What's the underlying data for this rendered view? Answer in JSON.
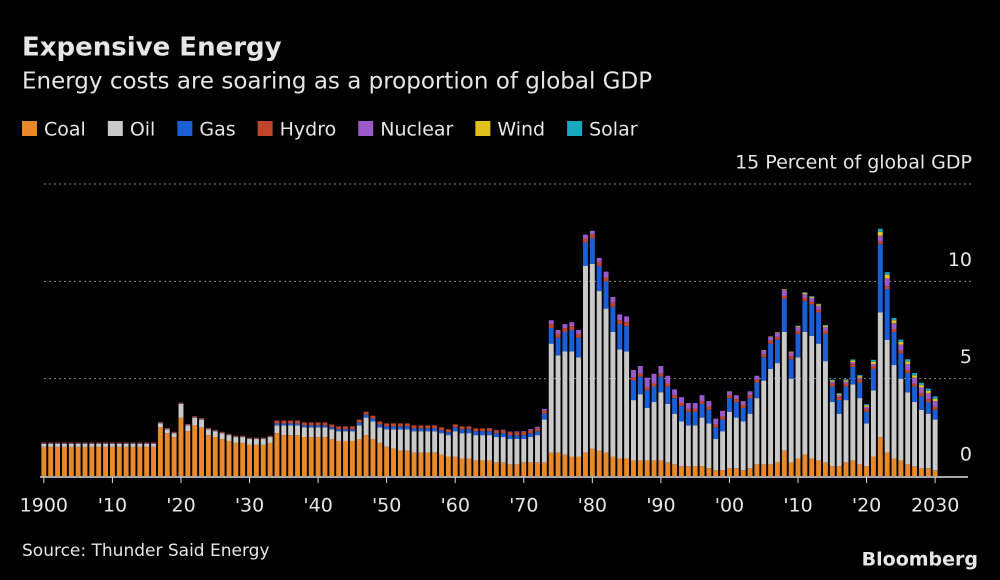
{
  "chart_data": {
    "type": "bar",
    "stacked": true,
    "title": "Expensive Energy",
    "subtitle": "Energy costs are soaring as a proportion of global GDP",
    "source": "Source: Thunder Said Energy",
    "logo": "Bloomberg",
    "xlim": [
      1899,
      2031
    ],
    "ylim": [
      0,
      15
    ],
    "yticks": [
      0,
      5,
      10,
      {
        "value": 15,
        "label": "15 Percent of global GDP"
      }
    ],
    "xticks": [
      1900,
      {
        "value": 1910,
        "label": "'10"
      },
      {
        "value": 1920,
        "label": "'20"
      },
      {
        "value": 1930,
        "label": "'30"
      },
      {
        "value": 1940,
        "label": "'40"
      },
      {
        "value": 1950,
        "label": "'50"
      },
      {
        "value": 1960,
        "label": "'60"
      },
      {
        "value": 1970,
        "label": "'70"
      },
      {
        "value": 1980,
        "label": "'80"
      },
      {
        "value": 1990,
        "label": "'90"
      },
      {
        "value": 2000,
        "label": "'00"
      },
      {
        "value": 2010,
        "label": "'10"
      },
      {
        "value": 2020,
        "label": "'20"
      },
      2030
    ],
    "grid": true,
    "legend": "top-left",
    "x": [
      1900,
      1901,
      1902,
      1903,
      1904,
      1905,
      1906,
      1907,
      1908,
      1909,
      1910,
      1911,
      1912,
      1913,
      1914,
      1915,
      1916,
      1917,
      1918,
      1919,
      1920,
      1921,
      1922,
      1923,
      1924,
      1925,
      1926,
      1927,
      1928,
      1929,
      1930,
      1931,
      1932,
      1933,
      1934,
      1935,
      1936,
      1937,
      1938,
      1939,
      1940,
      1941,
      1942,
      1943,
      1944,
      1945,
      1946,
      1947,
      1948,
      1949,
      1950,
      1951,
      1952,
      1953,
      1954,
      1955,
      1956,
      1957,
      1958,
      1959,
      1960,
      1961,
      1962,
      1963,
      1964,
      1965,
      1966,
      1967,
      1968,
      1969,
      1970,
      1971,
      1972,
      1973,
      1974,
      1975,
      1976,
      1977,
      1978,
      1979,
      1980,
      1981,
      1982,
      1983,
      1984,
      1985,
      1986,
      1987,
      1988,
      1989,
      1990,
      1991,
      1992,
      1993,
      1994,
      1995,
      1996,
      1997,
      1998,
      1999,
      2000,
      2001,
      2002,
      2003,
      2004,
      2005,
      2006,
      2007,
      2008,
      2009,
      2010,
      2011,
      2012,
      2013,
      2014,
      2015,
      2016,
      2017,
      2018,
      2019,
      2020,
      2021,
      2022,
      2023,
      2024,
      2025,
      2026,
      2027,
      2028,
      2029,
      2030
    ],
    "series": [
      {
        "name": "Coal",
        "color": "#e8892b",
        "values": [
          1.5,
          1.5,
          1.5,
          1.5,
          1.5,
          1.5,
          1.5,
          1.5,
          1.5,
          1.5,
          1.5,
          1.5,
          1.5,
          1.5,
          1.5,
          1.5,
          1.5,
          2.5,
          2.2,
          2.0,
          3.0,
          2.3,
          2.6,
          2.5,
          2.1,
          2.0,
          1.9,
          1.8,
          1.7,
          1.7,
          1.6,
          1.6,
          1.6,
          1.7,
          2.2,
          2.1,
          2.1,
          2.1,
          2.0,
          2.0,
          2.0,
          2.0,
          1.9,
          1.8,
          1.8,
          1.8,
          1.9,
          2.1,
          1.9,
          1.7,
          1.5,
          1.4,
          1.3,
          1.3,
          1.2,
          1.2,
          1.2,
          1.2,
          1.1,
          1.0,
          1.0,
          0.9,
          0.9,
          0.8,
          0.8,
          0.8,
          0.7,
          0.7,
          0.6,
          0.6,
          0.7,
          0.7,
          0.7,
          0.7,
          1.2,
          1.2,
          1.1,
          1.0,
          1.0,
          1.2,
          1.4,
          1.3,
          1.2,
          1.0,
          0.9,
          0.9,
          0.8,
          0.8,
          0.8,
          0.8,
          0.8,
          0.7,
          0.6,
          0.5,
          0.5,
          0.5,
          0.5,
          0.4,
          0.3,
          0.3,
          0.4,
          0.4,
          0.3,
          0.4,
          0.6,
          0.6,
          0.6,
          0.7,
          1.3,
          0.7,
          0.9,
          1.1,
          0.9,
          0.8,
          0.7,
          0.5,
          0.5,
          0.7,
          0.8,
          0.6,
          0.5,
          1.0,
          2.0,
          1.2,
          0.9,
          0.8,
          0.6,
          0.5,
          0.4,
          0.4,
          0.3
        ]
      },
      {
        "name": "Oil",
        "color": "#c9c9c9",
        "values": [
          0.15,
          0.15,
          0.15,
          0.15,
          0.15,
          0.15,
          0.15,
          0.15,
          0.15,
          0.15,
          0.15,
          0.15,
          0.15,
          0.15,
          0.15,
          0.15,
          0.15,
          0.2,
          0.2,
          0.2,
          0.7,
          0.3,
          0.4,
          0.4,
          0.3,
          0.3,
          0.3,
          0.3,
          0.3,
          0.3,
          0.3,
          0.3,
          0.3,
          0.3,
          0.4,
          0.5,
          0.5,
          0.5,
          0.5,
          0.5,
          0.5,
          0.5,
          0.5,
          0.5,
          0.5,
          0.5,
          0.7,
          0.9,
          0.9,
          0.8,
          0.9,
          1.0,
          1.1,
          1.1,
          1.1,
          1.1,
          1.1,
          1.1,
          1.1,
          1.1,
          1.3,
          1.3,
          1.3,
          1.3,
          1.3,
          1.3,
          1.3,
          1.3,
          1.3,
          1.3,
          1.2,
          1.3,
          1.4,
          2.2,
          5.6,
          5.0,
          5.3,
          5.4,
          5.1,
          9.6,
          9.5,
          8.2,
          7.4,
          6.4,
          5.6,
          5.5,
          3.1,
          3.4,
          2.7,
          3.0,
          3.5,
          3.0,
          2.6,
          2.3,
          2.1,
          2.1,
          2.5,
          2.3,
          1.6,
          2.0,
          2.9,
          2.6,
          2.5,
          2.8,
          3.4,
          4.3,
          4.9,
          5.1,
          6.1,
          4.3,
          5.2,
          6.3,
          6.3,
          6.0,
          5.2,
          3.3,
          2.7,
          3.2,
          3.9,
          3.4,
          2.2,
          3.4,
          6.4,
          5.8,
          4.8,
          4.2,
          3.7,
          3.3,
          3.0,
          2.8,
          2.6
        ]
      },
      {
        "name": "Gas",
        "color": "#1a5fd6",
        "values": [
          0.02,
          0.02,
          0.02,
          0.02,
          0.02,
          0.02,
          0.02,
          0.02,
          0.02,
          0.02,
          0.02,
          0.02,
          0.02,
          0.02,
          0.02,
          0.02,
          0.02,
          0.02,
          0.02,
          0.02,
          0.02,
          0.02,
          0.02,
          0.02,
          0.02,
          0.02,
          0.02,
          0.02,
          0.02,
          0.02,
          0.02,
          0.02,
          0.02,
          0.02,
          0.1,
          0.1,
          0.1,
          0.1,
          0.1,
          0.1,
          0.1,
          0.1,
          0.1,
          0.1,
          0.1,
          0.1,
          0.15,
          0.15,
          0.15,
          0.15,
          0.15,
          0.15,
          0.15,
          0.15,
          0.15,
          0.15,
          0.15,
          0.15,
          0.15,
          0.15,
          0.2,
          0.2,
          0.2,
          0.2,
          0.2,
          0.2,
          0.2,
          0.2,
          0.2,
          0.2,
          0.2,
          0.2,
          0.2,
          0.3,
          0.8,
          0.9,
          1.0,
          1.1,
          1.0,
          1.2,
          1.3,
          1.3,
          1.4,
          1.3,
          1.3,
          1.3,
          1.0,
          0.9,
          0.9,
          0.8,
          0.8,
          0.9,
          0.8,
          0.8,
          0.7,
          0.7,
          0.7,
          0.7,
          0.6,
          0.6,
          0.7,
          0.8,
          0.7,
          0.8,
          0.8,
          1.2,
          1.3,
          1.2,
          1.7,
          1.0,
          1.2,
          1.6,
          1.6,
          1.6,
          1.4,
          0.8,
          0.7,
          0.7,
          0.9,
          0.8,
          0.6,
          1.1,
          3.5,
          2.6,
          1.7,
          1.3,
          1.0,
          0.8,
          0.7,
          0.6,
          0.5
        ]
      },
      {
        "name": "Hydro",
        "color": "#c0442a",
        "values": [
          0.05,
          0.05,
          0.05,
          0.05,
          0.05,
          0.05,
          0.05,
          0.05,
          0.05,
          0.05,
          0.05,
          0.05,
          0.05,
          0.05,
          0.05,
          0.05,
          0.05,
          0.05,
          0.05,
          0.05,
          0.05,
          0.05,
          0.05,
          0.05,
          0.05,
          0.05,
          0.05,
          0.05,
          0.05,
          0.05,
          0.05,
          0.05,
          0.05,
          0.05,
          0.15,
          0.15,
          0.15,
          0.15,
          0.15,
          0.15,
          0.15,
          0.15,
          0.15,
          0.15,
          0.15,
          0.15,
          0.15,
          0.15,
          0.15,
          0.15,
          0.15,
          0.15,
          0.15,
          0.15,
          0.15,
          0.15,
          0.15,
          0.15,
          0.15,
          0.15,
          0.15,
          0.15,
          0.15,
          0.15,
          0.15,
          0.15,
          0.15,
          0.15,
          0.15,
          0.15,
          0.15,
          0.15,
          0.15,
          0.15,
          0.2,
          0.2,
          0.2,
          0.2,
          0.2,
          0.2,
          0.2,
          0.2,
          0.2,
          0.2,
          0.2,
          0.2,
          0.15,
          0.15,
          0.15,
          0.15,
          0.15,
          0.15,
          0.15,
          0.15,
          0.15,
          0.15,
          0.15,
          0.15,
          0.15,
          0.15,
          0.15,
          0.15,
          0.15,
          0.15,
          0.15,
          0.15,
          0.15,
          0.15,
          0.15,
          0.15,
          0.15,
          0.15,
          0.15,
          0.15,
          0.15,
          0.15,
          0.15,
          0.15,
          0.15,
          0.15,
          0.15,
          0.15,
          0.15,
          0.15,
          0.15,
          0.15,
          0.15,
          0.15,
          0.15,
          0.15,
          0.15
        ]
      },
      {
        "name": "Nuclear",
        "color": "#9b59c9",
        "values": [
          0,
          0,
          0,
          0,
          0,
          0,
          0,
          0,
          0,
          0,
          0,
          0,
          0,
          0,
          0,
          0,
          0,
          0,
          0,
          0,
          0,
          0,
          0,
          0,
          0,
          0,
          0,
          0,
          0,
          0,
          0,
          0,
          0,
          0,
          0,
          0,
          0,
          0,
          0,
          0,
          0,
          0,
          0,
          0,
          0,
          0,
          0,
          0,
          0,
          0,
          0,
          0,
          0,
          0,
          0,
          0,
          0,
          0,
          0,
          0,
          0,
          0,
          0,
          0,
          0,
          0.02,
          0.02,
          0.03,
          0.03,
          0.04,
          0.05,
          0.06,
          0.08,
          0.1,
          0.2,
          0.2,
          0.2,
          0.2,
          0.2,
          0.2,
          0.2,
          0.2,
          0.3,
          0.3,
          0.3,
          0.3,
          0.4,
          0.4,
          0.5,
          0.5,
          0.4,
          0.4,
          0.3,
          0.3,
          0.3,
          0.3,
          0.3,
          0.3,
          0.3,
          0.3,
          0.2,
          0.2,
          0.2,
          0.2,
          0.2,
          0.2,
          0.2,
          0.2,
          0.3,
          0.2,
          0.2,
          0.2,
          0.2,
          0.2,
          0.2,
          0.1,
          0.1,
          0.1,
          0.1,
          0.1,
          0.1,
          0.1,
          0.3,
          0.4,
          0.3,
          0.3,
          0.3,
          0.3,
          0.3,
          0.3,
          0.3
        ]
      },
      {
        "name": "Wind",
        "color": "#e0c21a",
        "values": [
          0,
          0,
          0,
          0,
          0,
          0,
          0,
          0,
          0,
          0,
          0,
          0,
          0,
          0,
          0,
          0,
          0,
          0,
          0,
          0,
          0,
          0,
          0,
          0,
          0,
          0,
          0,
          0,
          0,
          0,
          0,
          0,
          0,
          0,
          0,
          0,
          0,
          0,
          0,
          0,
          0,
          0,
          0,
          0,
          0,
          0,
          0,
          0,
          0,
          0,
          0,
          0,
          0,
          0,
          0,
          0,
          0,
          0,
          0,
          0,
          0,
          0,
          0,
          0,
          0,
          0,
          0,
          0,
          0,
          0,
          0,
          0,
          0,
          0,
          0,
          0,
          0,
          0,
          0,
          0,
          0,
          0,
          0,
          0,
          0,
          0,
          0,
          0,
          0,
          0,
          0,
          0,
          0,
          0,
          0,
          0,
          0,
          0,
          0,
          0,
          0,
          0,
          0,
          0,
          0,
          0.02,
          0.02,
          0.03,
          0.04,
          0.04,
          0.05,
          0.06,
          0.06,
          0.07,
          0.07,
          0.06,
          0.06,
          0.07,
          0.08,
          0.08,
          0.08,
          0.12,
          0.2,
          0.18,
          0.15,
          0.14,
          0.13,
          0.12,
          0.12,
          0.12,
          0.12
        ]
      },
      {
        "name": "Solar",
        "color": "#1aa7c0",
        "values": [
          0,
          0,
          0,
          0,
          0,
          0,
          0,
          0,
          0,
          0,
          0,
          0,
          0,
          0,
          0,
          0,
          0,
          0,
          0,
          0,
          0,
          0,
          0,
          0,
          0,
          0,
          0,
          0,
          0,
          0,
          0,
          0,
          0,
          0,
          0,
          0,
          0,
          0,
          0,
          0,
          0,
          0,
          0,
          0,
          0,
          0,
          0,
          0,
          0,
          0,
          0,
          0,
          0,
          0,
          0,
          0,
          0,
          0,
          0,
          0,
          0,
          0,
          0,
          0,
          0,
          0,
          0,
          0,
          0,
          0,
          0,
          0,
          0,
          0,
          0,
          0,
          0,
          0,
          0,
          0,
          0,
          0,
          0,
          0,
          0,
          0,
          0,
          0,
          0,
          0,
          0,
          0,
          0,
          0,
          0,
          0,
          0,
          0,
          0,
          0,
          0,
          0,
          0,
          0,
          0,
          0,
          0,
          0,
          0,
          0,
          0.02,
          0.03,
          0.03,
          0.03,
          0.04,
          0.04,
          0.04,
          0.05,
          0.06,
          0.06,
          0.06,
          0.1,
          0.15,
          0.14,
          0.12,
          0.12,
          0.12,
          0.12,
          0.12,
          0.12,
          0.12
        ]
      }
    ]
  }
}
